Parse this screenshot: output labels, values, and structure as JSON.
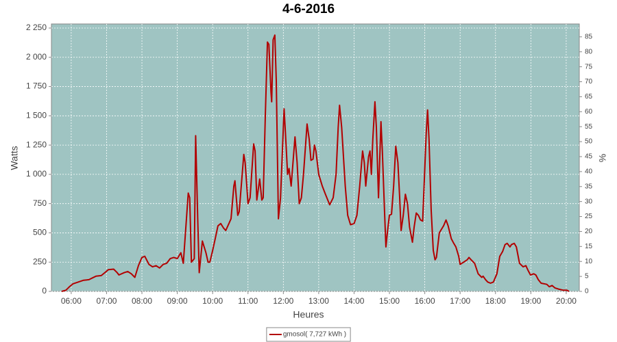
{
  "chart_data": {
    "type": "line",
    "title": "4-6-2016",
    "x_label": "Heures",
    "y_label": "Watts",
    "y2_label": "%",
    "xlim": [
      5.44,
      20.37
    ],
    "xticks": [
      {
        "value": 6,
        "label": "06:00"
      },
      {
        "value": 7,
        "label": "07:00"
      },
      {
        "value": 8,
        "label": "08:00"
      },
      {
        "value": 9,
        "label": "09:00"
      },
      {
        "value": 10,
        "label": "10:00"
      },
      {
        "value": 11,
        "label": "11:00"
      },
      {
        "value": 12,
        "label": "12:00"
      },
      {
        "value": 13,
        "label": "13:00"
      },
      {
        "value": 14,
        "label": "14:00"
      },
      {
        "value": 15,
        "label": "15:00"
      },
      {
        "value": 16,
        "label": "16:00"
      },
      {
        "value": 17,
        "label": "17:00"
      },
      {
        "value": 18,
        "label": "18:00"
      },
      {
        "value": 19,
        "label": "19:00"
      },
      {
        "value": 20,
        "label": "20:00"
      }
    ],
    "ylim": [
      0,
      2285
    ],
    "yticks": [
      0,
      250,
      500,
      750,
      {
        "value": 1000,
        "label": "1 000"
      },
      {
        "value": 1250,
        "label": "1 250"
      },
      {
        "value": 1500,
        "label": "1 500"
      },
      {
        "value": 1750,
        "label": "1 750"
      },
      {
        "value": 2000,
        "label": "2 000"
      },
      {
        "value": 2250,
        "label": "2 250"
      }
    ],
    "y2lim": [
      0,
      89.3
    ],
    "y2ticks": [
      0,
      5,
      10,
      15,
      20,
      25,
      30,
      35,
      40,
      45,
      50,
      55,
      60,
      65,
      70,
      75,
      80,
      85
    ],
    "grid": true,
    "plot_background": "#9fc4c2",
    "legend_position": "bottom",
    "x": [
      5.73,
      5.85,
      5.95,
      6.05,
      6.2,
      6.35,
      6.5,
      6.6,
      6.7,
      6.85,
      6.95,
      7.05,
      7.2,
      7.3,
      7.35,
      7.5,
      7.6,
      7.7,
      7.8,
      7.9,
      8.0,
      8.08,
      8.2,
      8.3,
      8.4,
      8.5,
      8.6,
      8.7,
      8.8,
      8.9,
      9.0,
      9.1,
      9.17,
      9.31,
      9.35,
      9.4,
      9.48,
      9.52,
      9.58,
      9.62,
      9.71,
      9.81,
      9.87,
      9.92,
      10.0,
      10.08,
      10.15,
      10.23,
      10.31,
      10.37,
      10.46,
      10.52,
      10.6,
      10.63,
      10.71,
      10.75,
      10.88,
      10.92,
      11.0,
      11.06,
      11.16,
      11.2,
      11.25,
      11.33,
      11.39,
      11.43,
      11.49,
      11.55,
      11.59,
      11.65,
      11.67,
      11.71,
      11.76,
      11.8,
      11.84,
      11.86,
      11.92,
      12.02,
      12.06,
      12.12,
      12.16,
      12.22,
      12.33,
      12.39,
      12.45,
      12.51,
      12.57,
      12.67,
      12.73,
      12.78,
      12.84,
      12.88,
      12.92,
      13.0,
      13.1,
      13.19,
      13.31,
      13.41,
      13.49,
      13.55,
      13.59,
      13.65,
      13.75,
      13.82,
      13.9,
      14.0,
      14.08,
      14.16,
      14.24,
      14.29,
      14.33,
      14.41,
      14.45,
      14.49,
      14.53,
      14.59,
      14.63,
      14.69,
      14.76,
      14.8,
      14.86,
      14.9,
      14.94,
      15.0,
      15.06,
      15.12,
      15.18,
      15.24,
      15.29,
      15.33,
      15.39,
      15.45,
      15.51,
      15.57,
      15.65,
      15.7,
      15.76,
      15.82,
      15.88,
      15.94,
      15.98,
      16.04,
      16.08,
      16.12,
      16.18,
      16.24,
      16.29,
      16.33,
      16.41,
      16.49,
      16.53,
      16.6,
      16.66,
      16.75,
      16.82,
      16.88,
      16.96,
      17.0,
      17.1,
      17.2,
      17.25,
      17.31,
      17.41,
      17.51,
      17.61,
      17.65,
      17.72,
      17.78,
      17.86,
      17.94,
      18.04,
      18.12,
      18.2,
      18.27,
      18.33,
      18.41,
      18.45,
      18.53,
      18.59,
      18.68,
      18.78,
      18.86,
      18.92,
      18.99,
      19.08,
      19.14,
      19.21,
      19.29,
      19.45,
      19.52,
      19.6,
      19.68,
      19.78,
      19.92,
      20.02,
      20.08
    ],
    "series": [
      {
        "name": "gmosol( 7,727 kWh )",
        "color": "#b20000",
        "values": [
          0,
          10,
          40,
          65,
          80,
          95,
          100,
          115,
          130,
          135,
          160,
          185,
          190,
          160,
          140,
          160,
          170,
          150,
          120,
          220,
          290,
          300,
          230,
          210,
          220,
          200,
          230,
          240,
          280,
          290,
          280,
          330,
          240,
          840,
          800,
          250,
          280,
          1330,
          600,
          160,
          430,
          330,
          250,
          250,
          350,
          460,
          560,
          580,
          540,
          520,
          580,
          620,
          900,
          945,
          650,
          680,
          1170,
          1100,
          750,
          800,
          1260,
          1200,
          780,
          960,
          780,
          800,
          1500,
          2130,
          2110,
          1700,
          1620,
          2150,
          2190,
          1800,
          1000,
          620,
          800,
          1560,
          1350,
          1000,
          1050,
          900,
          1320,
          1100,
          750,
          800,
          1000,
          1430,
          1300,
          1120,
          1130,
          1250,
          1200,
          1000,
          900,
          830,
          740,
          800,
          1000,
          1400,
          1590,
          1400,
          900,
          650,
          570,
          580,
          650,
          900,
          1200,
          1100,
          900,
          1150,
          1200,
          1000,
          1300,
          1620,
          1400,
          800,
          1450,
          1200,
          700,
          380,
          500,
          650,
          660,
          900,
          1240,
          1100,
          800,
          520,
          650,
          830,
          750,
          550,
          420,
          550,
          670,
          650,
          610,
          600,
          900,
          1350,
          1550,
          1300,
          700,
          350,
          270,
          290,
          500,
          540,
          560,
          610,
          560,
          450,
          410,
          380,
          300,
          230,
          250,
          270,
          290,
          270,
          240,
          150,
          120,
          130,
          100,
          80,
          70,
          80,
          150,
          300,
          340,
          400,
          410,
          380,
          400,
          410,
          380,
          240,
          210,
          220,
          180,
          140,
          150,
          140,
          100,
          70,
          60,
          40,
          50,
          30,
          20,
          10,
          10,
          0
        ]
      }
    ]
  }
}
